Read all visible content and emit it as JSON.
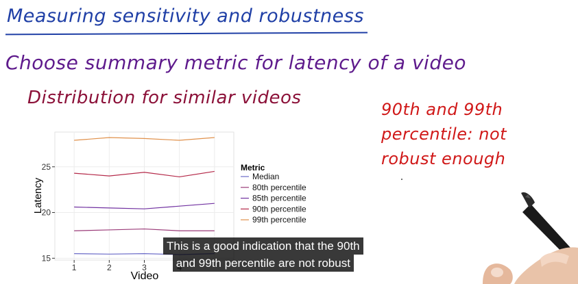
{
  "heading": "Measuring sensitivity and robustness",
  "line1": "Choose summary metric for latency of a video",
  "line2": "Distribution for similar videos",
  "note": [
    "90th and 99th",
    "percentile: not",
    "robust enough"
  ],
  "subtitle": [
    "This is a good indication that the 90th",
    "and 99th percentile are not robust"
  ],
  "colors": {
    "heading": "#1f3fa6",
    "line1": "#5e1a8c",
    "line2": "#8b1038",
    "note": "#d01818"
  },
  "chart_data": {
    "type": "line",
    "xlabel": "Video",
    "ylabel": "Latency",
    "x": [
      1,
      2,
      3,
      4,
      5
    ],
    "x_ticks": [
      "1",
      "2",
      "3",
      "4"
    ],
    "y_ticks": [
      "15",
      "20",
      "25"
    ],
    "ylim": [
      14.8,
      28.8
    ],
    "grid": true,
    "legend_title": "Metric",
    "legend_placement": "right",
    "series": [
      {
        "name": "Median",
        "color": "#6a6ac8",
        "values": [
          15.5,
          15.45,
          15.5,
          15.4,
          15.5
        ]
      },
      {
        "name": "80th percentile",
        "color": "#9a3a78",
        "values": [
          18.0,
          18.1,
          18.2,
          18.0,
          18.0
        ]
      },
      {
        "name": "85th percentile",
        "color": "#7030a0",
        "values": [
          20.6,
          20.5,
          20.4,
          20.7,
          21.0
        ]
      },
      {
        "name": "90th percentile",
        "color": "#b42848",
        "values": [
          24.3,
          24.0,
          24.4,
          23.9,
          24.5
        ]
      },
      {
        "name": "99th percentile",
        "color": "#e0904a",
        "values": [
          27.9,
          28.2,
          28.1,
          27.9,
          28.2
        ]
      }
    ]
  }
}
